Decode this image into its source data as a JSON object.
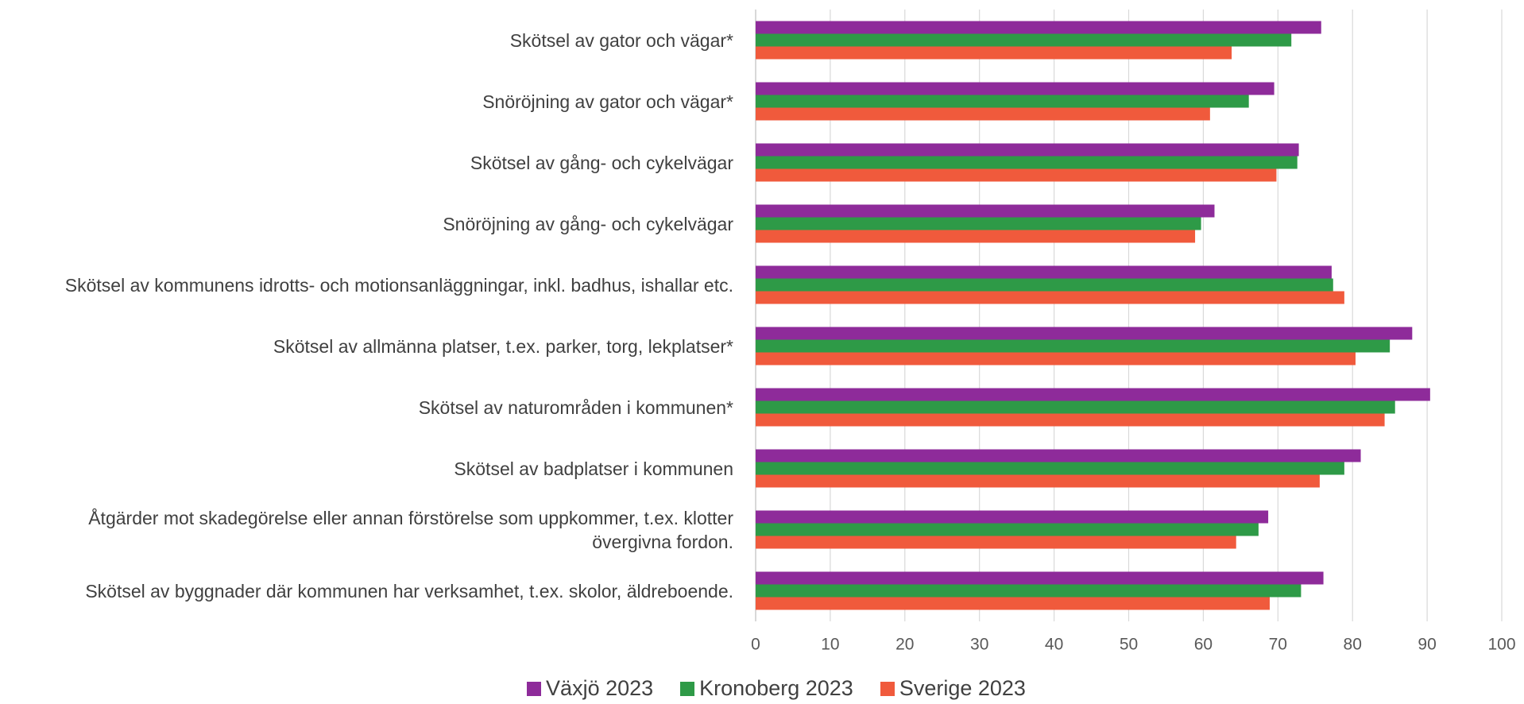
{
  "chart_data": {
    "type": "barh",
    "categories": [
      "Skötsel av gator och vägar*",
      "Snöröjning av gator och vägar*",
      "Skötsel av gång- och cykelvägar",
      "Snöröjning av gång- och cykelvägar",
      "Skötsel av kommunens idrotts- och motionsanläggningar, inkl. badhus, ishallar etc.",
      "Skötsel av allmänna platser, t.ex. parker, torg, lekplatser*",
      "Skötsel av naturområden i kommunen*",
      "Skötsel av badplatser i kommunen",
      "Åtgärder mot skadegörelse eller annan förstörelse som uppkommer, t.ex. klotter övergivna fordon.",
      "Skötsel av byggnader där kommunen har verksamhet, t.ex. skolor, äldreboende."
    ],
    "series": [
      {
        "name": "Växjö 2023",
        "color": "#8e2b9a",
        "values": [
          75.8,
          69.5,
          72.8,
          61.5,
          77.2,
          88.0,
          90.4,
          81.1,
          68.7,
          76.1
        ]
      },
      {
        "name": "Kronoberg 2023",
        "color": "#2e9a47",
        "values": [
          71.8,
          66.1,
          72.6,
          59.7,
          77.4,
          85.0,
          85.7,
          78.9,
          67.4,
          73.1
        ]
      },
      {
        "name": "Sverige 2023",
        "color": "#f05a3c",
        "values": [
          63.8,
          60.9,
          69.8,
          58.9,
          78.9,
          80.4,
          84.3,
          75.6,
          64.4,
          68.9
        ]
      }
    ],
    "xlim": [
      0,
      100
    ],
    "xticks": [
      0,
      10,
      20,
      30,
      40,
      50,
      60,
      70,
      80,
      90,
      100
    ],
    "grid": true,
    "legend": "bottom"
  }
}
